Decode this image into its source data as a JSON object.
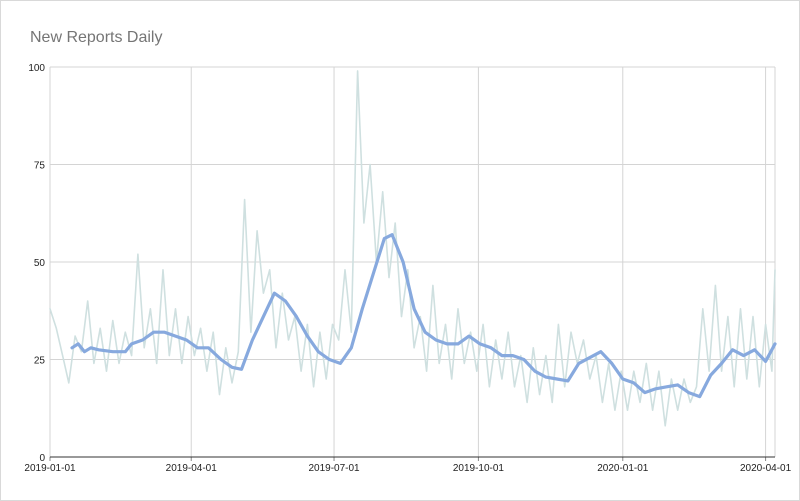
{
  "chart_data": {
    "type": "line",
    "title": "New Reports Daily",
    "xlabel": "",
    "ylabel": "",
    "x_range": [
      "2019-01-01",
      "2020-04-07"
    ],
    "ylim": [
      0,
      100
    ],
    "y_ticks": [
      0,
      25,
      50,
      75,
      100
    ],
    "x_ticks": [
      "2019-01-01",
      "2019-04-01",
      "2019-07-01",
      "2019-10-01",
      "2020-01-01",
      "2020-04-01"
    ],
    "grid": true,
    "legend": "none",
    "series": [
      {
        "color": "#cfe0e0",
        "points": [
          [
            "2019-01-01",
            38
          ],
          [
            "2019-01-05",
            33
          ],
          [
            "2019-01-09",
            26
          ],
          [
            "2019-01-13",
            19
          ],
          [
            "2019-01-17",
            31
          ],
          [
            "2019-01-21",
            27
          ],
          [
            "2019-01-25",
            40
          ],
          [
            "2019-01-29",
            24
          ],
          [
            "2019-02-02",
            33
          ],
          [
            "2019-02-06",
            22
          ],
          [
            "2019-02-10",
            35
          ],
          [
            "2019-02-14",
            24
          ],
          [
            "2019-02-18",
            32
          ],
          [
            "2019-02-22",
            26
          ],
          [
            "2019-02-26",
            52
          ],
          [
            "2019-03-02",
            28
          ],
          [
            "2019-03-06",
            38
          ],
          [
            "2019-03-10",
            24
          ],
          [
            "2019-03-14",
            48
          ],
          [
            "2019-03-18",
            26
          ],
          [
            "2019-03-22",
            38
          ],
          [
            "2019-03-26",
            24
          ],
          [
            "2019-03-30",
            36
          ],
          [
            "2019-04-03",
            26
          ],
          [
            "2019-04-07",
            33
          ],
          [
            "2019-04-11",
            22
          ],
          [
            "2019-04-15",
            32
          ],
          [
            "2019-04-19",
            16
          ],
          [
            "2019-04-23",
            28
          ],
          [
            "2019-04-27",
            19
          ],
          [
            "2019-05-01",
            27
          ],
          [
            "2019-05-05",
            66
          ],
          [
            "2019-05-09",
            32
          ],
          [
            "2019-05-13",
            58
          ],
          [
            "2019-05-17",
            42
          ],
          [
            "2019-05-21",
            48
          ],
          [
            "2019-05-25",
            28
          ],
          [
            "2019-05-29",
            42
          ],
          [
            "2019-06-02",
            30
          ],
          [
            "2019-06-06",
            36
          ],
          [
            "2019-06-10",
            22
          ],
          [
            "2019-06-14",
            34
          ],
          [
            "2019-06-18",
            18
          ],
          [
            "2019-06-22",
            32
          ],
          [
            "2019-06-26",
            20
          ],
          [
            "2019-06-30",
            34
          ],
          [
            "2019-07-04",
            30
          ],
          [
            "2019-07-08",
            48
          ],
          [
            "2019-07-12",
            32
          ],
          [
            "2019-07-16",
            99
          ],
          [
            "2019-07-20",
            60
          ],
          [
            "2019-07-24",
            75
          ],
          [
            "2019-07-28",
            50
          ],
          [
            "2019-08-01",
            68
          ],
          [
            "2019-08-05",
            46
          ],
          [
            "2019-08-09",
            60
          ],
          [
            "2019-08-13",
            36
          ],
          [
            "2019-08-17",
            48
          ],
          [
            "2019-08-21",
            28
          ],
          [
            "2019-08-25",
            36
          ],
          [
            "2019-08-29",
            22
          ],
          [
            "2019-09-02",
            44
          ],
          [
            "2019-09-06",
            24
          ],
          [
            "2019-09-10",
            34
          ],
          [
            "2019-09-14",
            20
          ],
          [
            "2019-09-18",
            38
          ],
          [
            "2019-09-22",
            24
          ],
          [
            "2019-09-26",
            32
          ],
          [
            "2019-09-30",
            22
          ],
          [
            "2019-10-04",
            34
          ],
          [
            "2019-10-08",
            18
          ],
          [
            "2019-10-12",
            30
          ],
          [
            "2019-10-16",
            20
          ],
          [
            "2019-10-20",
            32
          ],
          [
            "2019-10-24",
            18
          ],
          [
            "2019-10-28",
            26
          ],
          [
            "2019-11-01",
            14
          ],
          [
            "2019-11-05",
            28
          ],
          [
            "2019-11-09",
            16
          ],
          [
            "2019-11-13",
            26
          ],
          [
            "2019-11-17",
            14
          ],
          [
            "2019-11-21",
            34
          ],
          [
            "2019-11-25",
            18
          ],
          [
            "2019-11-29",
            32
          ],
          [
            "2019-12-03",
            24
          ],
          [
            "2019-12-07",
            30
          ],
          [
            "2019-12-11",
            20
          ],
          [
            "2019-12-15",
            26
          ],
          [
            "2019-12-19",
            14
          ],
          [
            "2019-12-23",
            24
          ],
          [
            "2019-12-27",
            12
          ],
          [
            "2019-12-31",
            22
          ],
          [
            "2020-01-04",
            12
          ],
          [
            "2020-01-08",
            22
          ],
          [
            "2020-01-12",
            14
          ],
          [
            "2020-01-16",
            24
          ],
          [
            "2020-01-20",
            12
          ],
          [
            "2020-01-24",
            22
          ],
          [
            "2020-01-28",
            8
          ],
          [
            "2020-02-01",
            20
          ],
          [
            "2020-02-05",
            12
          ],
          [
            "2020-02-09",
            20
          ],
          [
            "2020-02-13",
            14
          ],
          [
            "2020-02-17",
            18
          ],
          [
            "2020-02-21",
            38
          ],
          [
            "2020-02-25",
            22
          ],
          [
            "2020-02-29",
            44
          ],
          [
            "2020-03-04",
            22
          ],
          [
            "2020-03-08",
            36
          ],
          [
            "2020-03-12",
            18
          ],
          [
            "2020-03-16",
            38
          ],
          [
            "2020-03-20",
            20
          ],
          [
            "2020-03-24",
            36
          ],
          [
            "2020-03-28",
            18
          ],
          [
            "2020-04-01",
            34
          ],
          [
            "2020-04-05",
            22
          ],
          [
            "2020-04-07",
            48
          ]
        ]
      },
      {
        "color": "#87a9de",
        "points": [
          [
            "2019-01-15",
            28
          ],
          [
            "2019-01-19",
            29
          ],
          [
            "2019-01-23",
            27
          ],
          [
            "2019-01-27",
            28
          ],
          [
            "2019-02-01",
            27.5
          ],
          [
            "2019-02-10",
            27
          ],
          [
            "2019-02-18",
            27
          ],
          [
            "2019-02-22",
            29
          ],
          [
            "2019-03-01",
            30
          ],
          [
            "2019-03-08",
            32
          ],
          [
            "2019-03-15",
            32
          ],
          [
            "2019-03-22",
            31
          ],
          [
            "2019-03-29",
            30
          ],
          [
            "2019-04-05",
            28
          ],
          [
            "2019-04-12",
            28
          ],
          [
            "2019-04-20",
            25
          ],
          [
            "2019-04-27",
            23
          ],
          [
            "2019-05-03",
            22.5
          ],
          [
            "2019-05-10",
            30
          ],
          [
            "2019-05-17",
            36
          ],
          [
            "2019-05-24",
            42
          ],
          [
            "2019-05-31",
            40
          ],
          [
            "2019-06-07",
            36
          ],
          [
            "2019-06-14",
            31
          ],
          [
            "2019-06-21",
            27
          ],
          [
            "2019-06-28",
            25
          ],
          [
            "2019-07-05",
            24
          ],
          [
            "2019-07-12",
            28
          ],
          [
            "2019-07-19",
            38
          ],
          [
            "2019-07-26",
            47
          ],
          [
            "2019-08-02",
            56
          ],
          [
            "2019-08-07",
            57
          ],
          [
            "2019-08-14",
            50
          ],
          [
            "2019-08-21",
            38
          ],
          [
            "2019-08-28",
            32
          ],
          [
            "2019-09-04",
            30
          ],
          [
            "2019-09-11",
            29
          ],
          [
            "2019-09-18",
            29
          ],
          [
            "2019-09-25",
            31
          ],
          [
            "2019-10-02",
            29
          ],
          [
            "2019-10-09",
            28
          ],
          [
            "2019-10-16",
            26
          ],
          [
            "2019-10-23",
            26
          ],
          [
            "2019-10-30",
            25
          ],
          [
            "2019-11-06",
            22
          ],
          [
            "2019-11-13",
            20.5
          ],
          [
            "2019-11-20",
            20
          ],
          [
            "2019-11-27",
            19.5
          ],
          [
            "2019-12-04",
            24
          ],
          [
            "2019-12-11",
            25.5
          ],
          [
            "2019-12-18",
            27
          ],
          [
            "2019-12-25",
            24
          ],
          [
            "2020-01-01",
            20
          ],
          [
            "2020-01-08",
            19
          ],
          [
            "2020-01-15",
            16.5
          ],
          [
            "2020-01-22",
            17.5
          ],
          [
            "2020-01-29",
            18
          ],
          [
            "2020-02-05",
            18.5
          ],
          [
            "2020-02-12",
            16.5
          ],
          [
            "2020-02-19",
            15.5
          ],
          [
            "2020-02-26",
            21
          ],
          [
            "2020-03-04",
            24
          ],
          [
            "2020-03-11",
            27.5
          ],
          [
            "2020-03-18",
            26
          ],
          [
            "2020-03-25",
            27.5
          ],
          [
            "2020-04-01",
            24.5
          ],
          [
            "2020-04-07",
            29
          ]
        ]
      }
    ]
  },
  "colors": {
    "grid": "#d4d4d4",
    "axis": "#888888",
    "title": "#757575"
  }
}
